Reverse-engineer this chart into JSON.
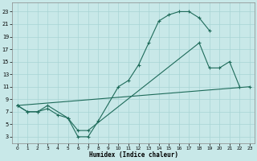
{
  "xlabel": "Humidex (Indice chaleur)",
  "bg_color": "#c8e8e8",
  "grid_color": "#a8d4d4",
  "line_color": "#1e6b5a",
  "xlim": [
    -0.5,
    23.5
  ],
  "ylim": [
    2.0,
    24.5
  ],
  "xticks": [
    0,
    1,
    2,
    3,
    4,
    5,
    6,
    7,
    8,
    9,
    10,
    11,
    12,
    13,
    14,
    15,
    16,
    17,
    18,
    19,
    20,
    21,
    22,
    23
  ],
  "yticks": [
    3,
    5,
    7,
    9,
    11,
    13,
    15,
    17,
    19,
    21,
    23
  ],
  "curve1_x": [
    0,
    1,
    2,
    3,
    5,
    6,
    7,
    8,
    10,
    11,
    12,
    13,
    14,
    15,
    16,
    17,
    18,
    19
  ],
  "curve1_y": [
    8,
    7,
    7,
    8,
    6,
    3,
    3,
    5.5,
    11,
    12,
    14.5,
    18,
    21.5,
    22.5,
    23,
    23,
    22,
    20
  ],
  "curve2_x": [
    0,
    1,
    2,
    3,
    4,
    5,
    6,
    7,
    18,
    19,
    20,
    21,
    22
  ],
  "curve2_y": [
    8,
    7,
    7,
    7.5,
    6.5,
    6,
    4,
    4,
    18,
    14,
    14,
    15,
    11
  ],
  "curve3_x": [
    0,
    23
  ],
  "curve3_y": [
    8,
    11
  ]
}
